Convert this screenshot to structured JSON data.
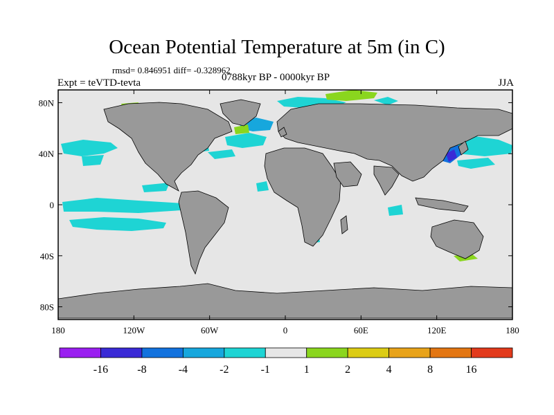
{
  "title": "Ocean Potential Temperature at 5m (in C)",
  "stats_text": "rmsd= 0.846951  diff= -0.328962",
  "left_label": "Expt = teVTD-tevta",
  "center_label": "0788kyr BP - 0000kyr BP",
  "right_label": "JJA",
  "map": {
    "projection": "cylindrical-equidistant",
    "lon_range": [
      -180,
      180
    ],
    "lat_range": [
      -90,
      90
    ],
    "ocean_color": "#e6e6e6",
    "land_color": "#999999",
    "y_ticks": [
      {
        "lat": 80,
        "label": "80N"
      },
      {
        "lat": 40,
        "label": "40N"
      },
      {
        "lat": 0,
        "label": "0"
      },
      {
        "lat": -40,
        "label": "40S"
      },
      {
        "lat": -80,
        "label": "80S"
      }
    ],
    "x_ticks": [
      {
        "lon": -180,
        "label": "180"
      },
      {
        "lon": -120,
        "label": "120W"
      },
      {
        "lon": -60,
        "label": "60W"
      },
      {
        "lon": 0,
        "label": "0"
      },
      {
        "lon": 60,
        "label": "60E"
      },
      {
        "lon": 120,
        "label": "120E"
      },
      {
        "lon": 180,
        "label": "180"
      }
    ]
  },
  "colorbar": {
    "colors": [
      "#9a1ff0",
      "#3a2ad6",
      "#1272de",
      "#17a7dd",
      "#1ed4d4",
      "#e6e6e6",
      "#8ad61e",
      "#dccc14",
      "#e8a31a",
      "#e37612",
      "#e23a1c"
    ],
    "labels": [
      "-16",
      "-8",
      "-4",
      "-2",
      "-1",
      "1",
      "2",
      "4",
      "8",
      "16"
    ]
  }
}
